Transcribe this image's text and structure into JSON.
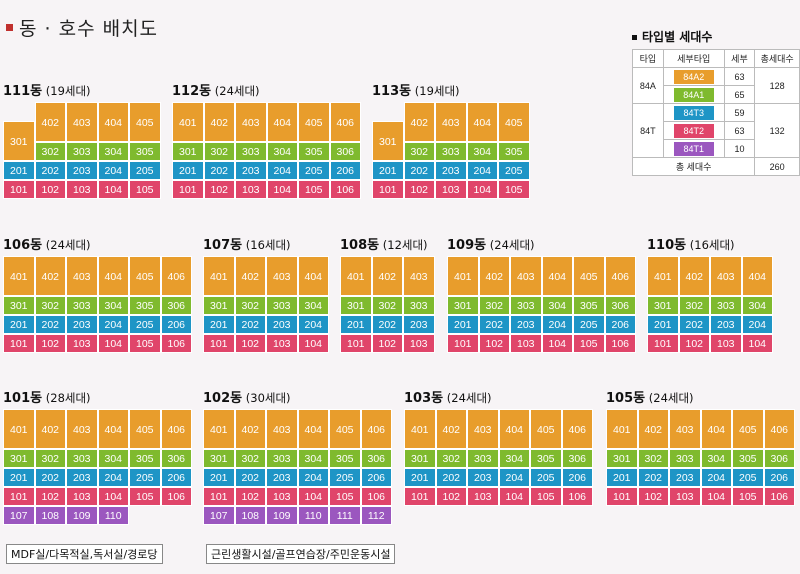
{
  "title": "동 · 호수 배치도",
  "legend": {
    "title": "타입별 세대수",
    "headers": [
      "타입",
      "세부타입",
      "세부",
      "총세대수"
    ],
    "types": [
      {
        "type": "84A",
        "total": "128",
        "subs": [
          {
            "name": "84A2",
            "count": "63",
            "color": "#e89d2c"
          },
          {
            "name": "84A1",
            "count": "65",
            "color": "#7fba2e"
          }
        ]
      },
      {
        "type": "84T",
        "total": "132",
        "subs": [
          {
            "name": "84T3",
            "count": "59",
            "color": "#1e95c6"
          },
          {
            "name": "84T2",
            "count": "63",
            "color": "#e0456a"
          },
          {
            "name": "84T1",
            "count": "10",
            "color": "#9b57bf"
          }
        ]
      }
    ],
    "grand_label": "총 세대수",
    "grand_total": "260"
  },
  "buildings": [
    {
      "name": "111동",
      "count": "(19세대)",
      "rows": [
        [
          "402",
          "403",
          "404",
          "405"
        ],
        [
          "302",
          "303",
          "304",
          "305"
        ],
        [
          "201",
          "202",
          "203",
          "204",
          "205"
        ],
        [
          "101",
          "102",
          "103",
          "104",
          "105"
        ]
      ],
      "corner": "301"
    },
    {
      "name": "112동",
      "count": "(24세대)",
      "rows": [
        [
          "401",
          "402",
          "403",
          "404",
          "405",
          "406"
        ],
        [
          "301",
          "302",
          "303",
          "304",
          "305",
          "306"
        ],
        [
          "201",
          "202",
          "203",
          "204",
          "205",
          "206"
        ],
        [
          "101",
          "102",
          "103",
          "104",
          "105",
          "106"
        ]
      ]
    },
    {
      "name": "113동",
      "count": "(19세대)",
      "rows": [
        [
          "402",
          "403",
          "404",
          "405"
        ],
        [
          "302",
          "303",
          "304",
          "305"
        ],
        [
          "201",
          "202",
          "203",
          "204",
          "205"
        ],
        [
          "101",
          "102",
          "103",
          "104",
          "105"
        ]
      ],
      "corner": "301"
    },
    {
      "name": "106동",
      "count": "(24세대)",
      "rows": [
        [
          "401",
          "402",
          "403",
          "404",
          "405",
          "406"
        ],
        [
          "301",
          "302",
          "303",
          "304",
          "305",
          "306"
        ],
        [
          "201",
          "202",
          "203",
          "204",
          "205",
          "206"
        ],
        [
          "101",
          "102",
          "103",
          "104",
          "105",
          "106"
        ]
      ]
    },
    {
      "name": "107동",
      "count": "(16세대)",
      "rows": [
        [
          "401",
          "402",
          "403",
          "404"
        ],
        [
          "301",
          "302",
          "303",
          "304"
        ],
        [
          "201",
          "202",
          "203",
          "204"
        ],
        [
          "101",
          "102",
          "103",
          "104"
        ]
      ]
    },
    {
      "name": "108동",
      "count": "(12세대)",
      "rows": [
        [
          "401",
          "402",
          "403"
        ],
        [
          "301",
          "302",
          "303"
        ],
        [
          "201",
          "202",
          "203"
        ],
        [
          "101",
          "102",
          "103"
        ]
      ]
    },
    {
      "name": "109동",
      "count": "(24세대)",
      "rows": [
        [
          "401",
          "402",
          "403",
          "404",
          "405",
          "406"
        ],
        [
          "301",
          "302",
          "303",
          "304",
          "305",
          "306"
        ],
        [
          "201",
          "202",
          "203",
          "204",
          "205",
          "206"
        ],
        [
          "101",
          "102",
          "103",
          "104",
          "105",
          "106"
        ]
      ]
    },
    {
      "name": "110동",
      "count": "(16세대)",
      "rows": [
        [
          "401",
          "402",
          "403",
          "404"
        ],
        [
          "301",
          "302",
          "303",
          "304"
        ],
        [
          "201",
          "202",
          "203",
          "204"
        ],
        [
          "101",
          "102",
          "103",
          "104"
        ]
      ]
    },
    {
      "name": "101동",
      "count": "(28세대)",
      "rows": [
        [
          "401",
          "402",
          "403",
          "404",
          "405",
          "406"
        ],
        [
          "301",
          "302",
          "303",
          "304",
          "305",
          "306"
        ],
        [
          "201",
          "202",
          "203",
          "204",
          "205",
          "206"
        ],
        [
          "101",
          "102",
          "103",
          "104",
          "105",
          "106"
        ]
      ],
      "extra": [
        "107",
        "108",
        "109",
        "110"
      ],
      "note": "MDF실/다목적실,독서실/경로당"
    },
    {
      "name": "102동",
      "count": "(30세대)",
      "rows": [
        [
          "401",
          "402",
          "403",
          "404",
          "405",
          "406"
        ],
        [
          "301",
          "302",
          "303",
          "304",
          "305",
          "306"
        ],
        [
          "201",
          "202",
          "203",
          "204",
          "205",
          "206"
        ],
        [
          "101",
          "102",
          "103",
          "104",
          "105",
          "106"
        ]
      ],
      "extra": [
        "107",
        "108",
        "109",
        "110",
        "111",
        "112"
      ],
      "note": "근린생활시설/골프연습장/주민운동시설"
    },
    {
      "name": "103동",
      "count": "(24세대)",
      "rows": [
        [
          "401",
          "402",
          "403",
          "404",
          "405",
          "406"
        ],
        [
          "301",
          "302",
          "303",
          "304",
          "305",
          "306"
        ],
        [
          "201",
          "202",
          "203",
          "204",
          "205",
          "206"
        ],
        [
          "101",
          "102",
          "103",
          "104",
          "105",
          "106"
        ]
      ]
    },
    {
      "name": "105동",
      "count": "(24세대)",
      "rows": [
        [
          "401",
          "402",
          "403",
          "404",
          "405",
          "406"
        ],
        [
          "301",
          "302",
          "303",
          "304",
          "305",
          "306"
        ],
        [
          "201",
          "202",
          "203",
          "204",
          "205",
          "206"
        ],
        [
          "101",
          "102",
          "103",
          "104",
          "105",
          "106"
        ]
      ]
    }
  ]
}
